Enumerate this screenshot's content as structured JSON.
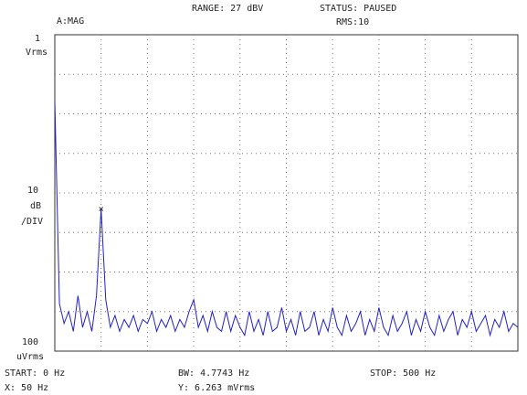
{
  "header": {
    "range": "RANGE: 27 dBV",
    "status": "STATUS: PAUSED",
    "trace": "A:MAG",
    "average": "RMS:10"
  },
  "y_labels": {
    "top": [
      "1",
      "Vrms"
    ],
    "middle": [
      "10",
      "dB",
      "/DIV"
    ],
    "bottom": [
      "100",
      "uVrms"
    ]
  },
  "footer": {
    "start": "START: 0 Hz",
    "bw": "BW: 4.7743 Hz",
    "stop": "STOP: 500 Hz",
    "marker_x": "X: 50 Hz",
    "marker_y": "Y: 6.263 mVrms"
  },
  "chart_data": {
    "type": "line",
    "x": [
      0,
      5,
      10,
      15,
      20,
      25,
      30,
      35,
      40,
      45,
      50,
      55,
      60,
      65,
      70,
      75,
      80,
      85,
      90,
      95,
      100,
      105,
      110,
      115,
      120,
      125,
      130,
      135,
      140,
      145,
      150,
      155,
      160,
      165,
      170,
      175,
      180,
      185,
      190,
      195,
      200,
      205,
      210,
      215,
      220,
      225,
      230,
      235,
      240,
      245,
      250,
      255,
      260,
      265,
      270,
      275,
      280,
      285,
      290,
      295,
      300,
      305,
      310,
      315,
      320,
      325,
      330,
      335,
      340,
      345,
      350,
      355,
      360,
      365,
      370,
      375,
      380,
      385,
      390,
      395,
      400,
      405,
      410,
      415,
      420,
      425,
      430,
      435,
      440,
      445,
      450,
      455,
      460,
      465,
      470,
      475,
      480,
      485,
      490,
      495,
      500
    ],
    "series": [
      {
        "color": "#2020c8",
        "values": [
          -16.6,
          -68,
          -73,
          -70,
          -75,
          -66,
          -74,
          -70,
          -75,
          -66,
          -44.06,
          -67,
          -74,
          -71,
          -75,
          -72,
          -74,
          -71,
          -75,
          -72,
          -73,
          -70,
          -75,
          -72,
          -74,
          -71,
          -75,
          -72,
          -74,
          -70,
          -67,
          -74,
          -71,
          -75,
          -70,
          -74,
          -75,
          -70,
          -75,
          -71,
          -74,
          -76,
          -70,
          -75,
          -72,
          -76,
          -70,
          -75,
          -74,
          -69,
          -75,
          -72,
          -76,
          -70,
          -75,
          -74,
          -70,
          -76,
          -72,
          -75,
          -69,
          -74,
          -76,
          -71,
          -75,
          -73,
          -70,
          -76,
          -72,
          -75,
          -69,
          -74,
          -76,
          -71,
          -75,
          -73,
          -70,
          -76,
          -72,
          -75,
          -70,
          -74,
          -76,
          -71,
          -75,
          -72,
          -70,
          -76,
          -72,
          -74,
          -70,
          -75,
          -73,
          -71,
          -76,
          -72,
          -74,
          -70,
          -75,
          -73,
          -74
        ]
      }
    ],
    "xlim": [
      0,
      500
    ],
    "ylim": [
      -80,
      0
    ],
    "grid": true
  }
}
